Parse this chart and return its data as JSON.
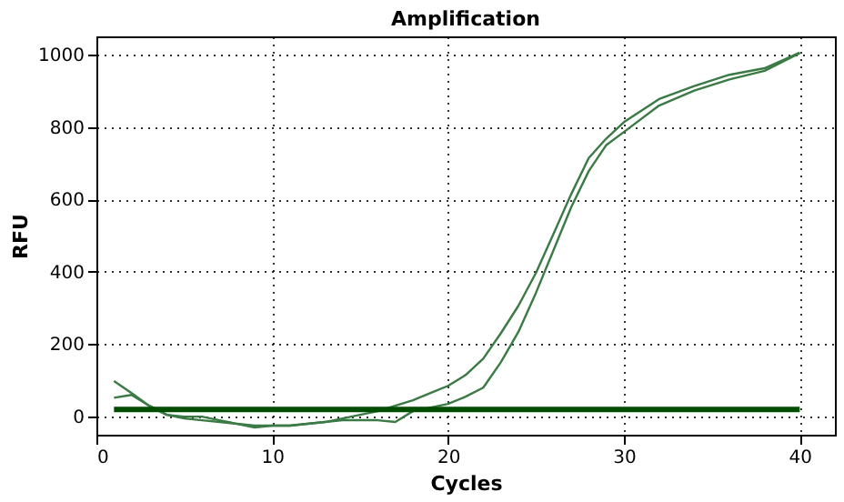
{
  "chart_data": {
    "type": "line",
    "title": "Amplification",
    "xlabel": "Cycles",
    "ylabel": "RFU",
    "xlim": [
      0,
      42
    ],
    "xticks": [
      0,
      10,
      20,
      30,
      40
    ],
    "ylim": [
      -50,
      1050
    ],
    "yticks": [
      0,
      200,
      400,
      600,
      800,
      {
        "value": 1000,
        "label": "1000"
      }
    ],
    "grid": true,
    "line_style": "solid",
    "marker": "none",
    "ref_lines": [
      {
        "axis": "y",
        "value": 20,
        "color": "#004d00"
      }
    ],
    "series": [
      {
        "color": "#3a7a44",
        "x": [
          1,
          2,
          3,
          4,
          5,
          6,
          7,
          8,
          9,
          10,
          11,
          12,
          13,
          14,
          15,
          16,
          17,
          18,
          19,
          20,
          21,
          22,
          23,
          24,
          25,
          26,
          27,
          28,
          29,
          30,
          32,
          34,
          36,
          38,
          40
        ],
        "values": [
          98,
          65,
          30,
          5,
          -5,
          -10,
          -15,
          -20,
          -25,
          -25,
          -25,
          -20,
          -15,
          -5,
          5,
          15,
          30,
          45,
          65,
          85,
          115,
          160,
          230,
          306,
          397,
          505,
          614,
          714,
          768,
          813,
          877,
          913,
          944,
          962,
          1005
        ]
      },
      {
        "color": "#3a7a44",
        "x": [
          1,
          2,
          3,
          4,
          5,
          6,
          7,
          8,
          9,
          10,
          11,
          12,
          13,
          14,
          15,
          16,
          17,
          18,
          19,
          20,
          21,
          22,
          23,
          24,
          25,
          26,
          27,
          28,
          29,
          30,
          32,
          34,
          36,
          38,
          40
        ],
        "values": [
          52,
          60,
          30,
          5,
          0,
          0,
          -10,
          -20,
          -30,
          -25,
          -25,
          -20,
          -15,
          -10,
          -10,
          -10,
          -15,
          15,
          25,
          35,
          55,
          80,
          150,
          234,
          342,
          460,
          578,
          678,
          750,
          786,
          859,
          900,
          931,
          955,
          1004
        ]
      }
    ]
  }
}
